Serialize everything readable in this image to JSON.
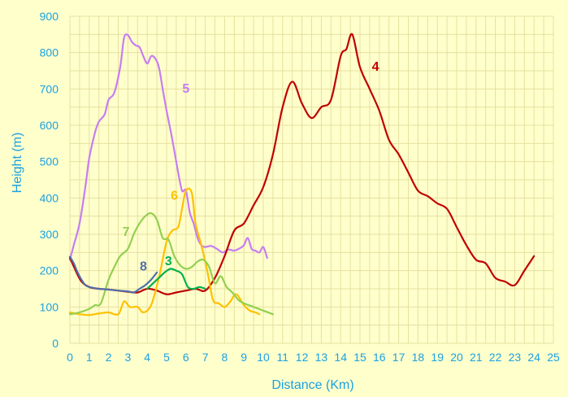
{
  "colors": {
    "background": "#FFFFCC",
    "grid": "#E6E0A0",
    "axis_text": "#1BA1E2"
  },
  "chart_data": {
    "type": "line",
    "title": "",
    "xlabel": "Distance (Km)",
    "ylabel": "Height (m)",
    "xlim": [
      0,
      25
    ],
    "ylim": [
      0,
      900
    ],
    "xticks": [
      0,
      1,
      2,
      3,
      4,
      5,
      6,
      7,
      8,
      9,
      10,
      11,
      12,
      13,
      14,
      15,
      16,
      17,
      18,
      19,
      20,
      21,
      22,
      23,
      24,
      25
    ],
    "yticks": [
      0,
      100,
      200,
      300,
      400,
      500,
      600,
      700,
      800,
      900
    ],
    "grid": true,
    "legend": "none",
    "series": [
      {
        "name": "5",
        "color": "#C77DF3",
        "label_at": [
          6.0,
          690
        ],
        "x": [
          0,
          0.2,
          0.5,
          0.8,
          1.0,
          1.3,
          1.5,
          1.8,
          2.0,
          2.3,
          2.6,
          2.8,
          3.0,
          3.2,
          3.4,
          3.6,
          3.8,
          4.0,
          4.2,
          4.4,
          4.6,
          4.8,
          5.0,
          5.3,
          5.6,
          5.8,
          6.0,
          6.2,
          6.4,
          6.6,
          6.8,
          7.0,
          7.3,
          7.6,
          7.9,
          8.2,
          8.5,
          8.8,
          9.0,
          9.2,
          9.4,
          9.6,
          9.8,
          10.0,
          10.2
        ],
        "y": [
          230,
          270,
          330,
          430,
          510,
          580,
          610,
          630,
          670,
          690,
          760,
          840,
          848,
          830,
          820,
          815,
          790,
          770,
          790,
          785,
          760,
          700,
          640,
          560,
          470,
          420,
          420,
          360,
          330,
          290,
          270,
          265,
          268,
          260,
          250,
          258,
          255,
          262,
          270,
          290,
          260,
          255,
          250,
          265,
          235
        ]
      },
      {
        "name": "4",
        "color": "#C00000",
        "label_at": [
          15.8,
          750
        ],
        "x": [
          0,
          0.3,
          0.6,
          1.0,
          1.5,
          2.0,
          2.5,
          3.0,
          3.5,
          4.0,
          4.5,
          5.0,
          5.5,
          6.0,
          6.5,
          7.0,
          7.5,
          8.0,
          8.5,
          9.0,
          9.5,
          10.0,
          10.5,
          11.0,
          11.5,
          12.0,
          12.5,
          13.0,
          13.5,
          14.0,
          14.3,
          14.6,
          15.0,
          15.5,
          16.0,
          16.5,
          17.0,
          17.5,
          18.0,
          18.5,
          19.0,
          19.5,
          20.0,
          20.5,
          21.0,
          21.5,
          22.0,
          22.5,
          23.0,
          23.5,
          24.0
        ],
        "y": [
          235,
          200,
          170,
          155,
          150,
          148,
          145,
          142,
          140,
          150,
          145,
          135,
          140,
          145,
          150,
          145,
          180,
          240,
          310,
          330,
          380,
          430,
          520,
          650,
          720,
          660,
          620,
          650,
          670,
          790,
          810,
          850,
          760,
          700,
          640,
          560,
          520,
          470,
          420,
          405,
          385,
          370,
          320,
          270,
          230,
          220,
          180,
          170,
          160,
          200,
          240
        ]
      },
      {
        "name": "6",
        "color": "#FFC000",
        "label_at": [
          5.4,
          395
        ],
        "x": [
          0,
          0.5,
          1.0,
          1.5,
          2.0,
          2.5,
          2.8,
          3.1,
          3.5,
          3.8,
          4.2,
          4.6,
          5.0,
          5.3,
          5.6,
          5.8,
          6.0,
          6.3,
          6.5,
          6.8,
          7.1,
          7.4,
          7.7,
          8.0,
          8.3,
          8.6,
          9.0,
          9.3,
          9.6,
          9.8
        ],
        "y": [
          85,
          80,
          78,
          82,
          85,
          80,
          115,
          100,
          100,
          85,
          105,
          180,
          280,
          310,
          320,
          370,
          420,
          415,
          330,
          270,
          200,
          120,
          110,
          100,
          115,
          135,
          105,
          90,
          85,
          80
        ]
      },
      {
        "name": "7",
        "color": "#92D050",
        "label_at": [
          2.9,
          295
        ],
        "x": [
          0,
          0.5,
          1.0,
          1.3,
          1.6,
          2.0,
          2.3,
          2.6,
          3.0,
          3.3,
          3.6,
          3.9,
          4.2,
          4.5,
          4.8,
          5.1,
          5.4,
          5.7,
          6.0,
          6.3,
          6.6,
          6.9,
          7.2,
          7.5,
          7.8,
          8.1,
          8.4,
          8.7,
          9.0,
          9.5,
          10.0,
          10.5
        ],
        "y": [
          80,
          85,
          95,
          105,
          110,
          175,
          210,
          240,
          260,
          300,
          330,
          350,
          358,
          340,
          290,
          285,
          240,
          215,
          205,
          210,
          225,
          230,
          210,
          165,
          185,
          155,
          140,
          120,
          110,
          100,
          90,
          80
        ]
      },
      {
        "name": "3",
        "color": "#00B050",
        "label_at": [
          5.1,
          215
        ],
        "x": [
          4.0,
          4.3,
          4.6,
          4.9,
          5.2,
          5.5,
          5.8,
          6.1,
          6.4,
          6.7,
          7.0
        ],
        "y": [
          150,
          165,
          180,
          195,
          205,
          200,
          190,
          155,
          150,
          155,
          150
        ]
      },
      {
        "name": "8",
        "color": "#4F6FA8",
        "label_at": [
          3.8,
          200
        ],
        "x": [
          0,
          0.2,
          0.4,
          0.6,
          0.8,
          1.0,
          1.5,
          2.0,
          2.5,
          3.0,
          3.3,
          3.6,
          3.9,
          4.2,
          4.5
        ],
        "y": [
          238,
          220,
          195,
          175,
          160,
          155,
          150,
          148,
          145,
          143,
          140,
          150,
          160,
          175,
          195
        ]
      }
    ]
  }
}
